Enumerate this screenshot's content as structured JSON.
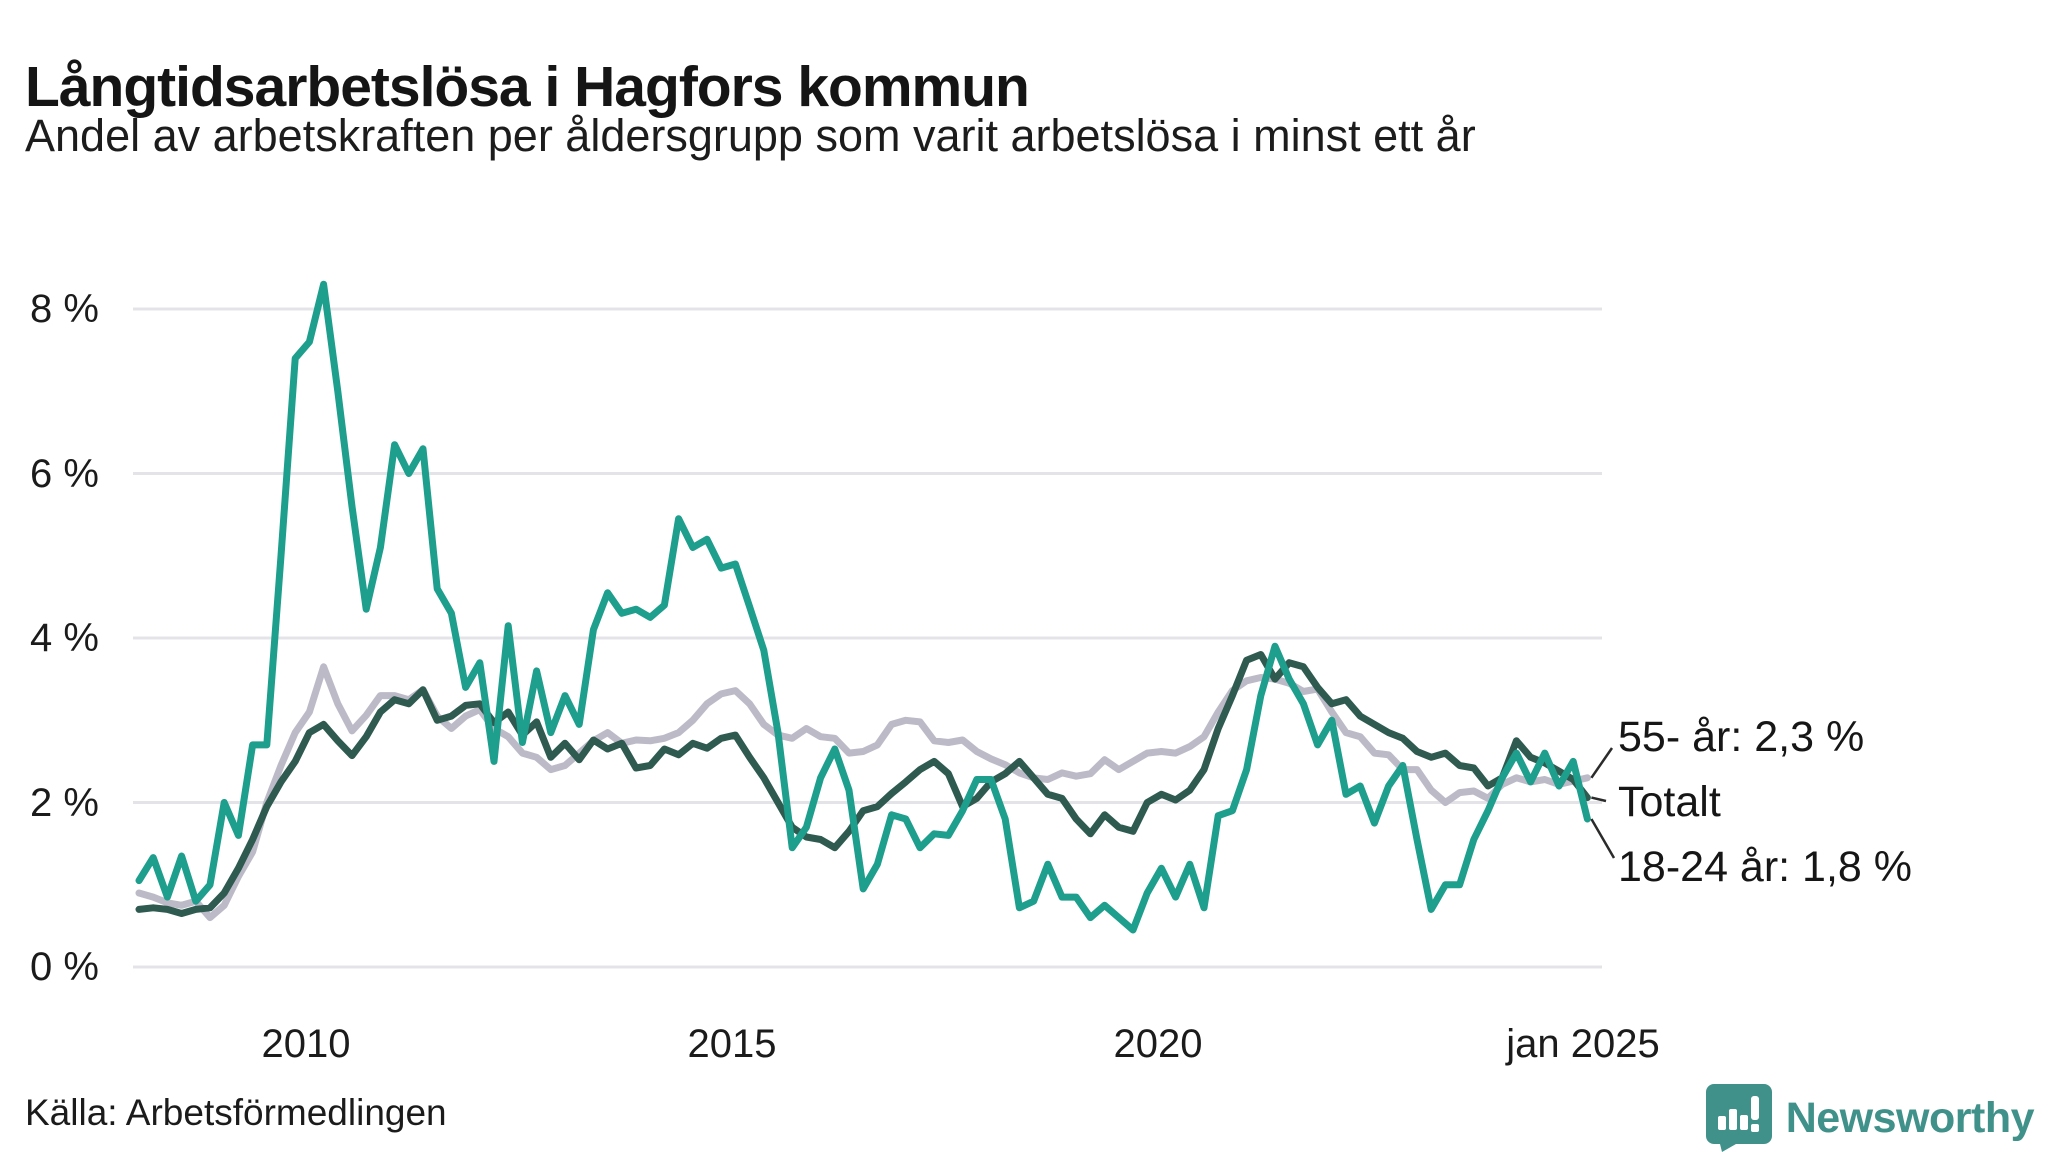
{
  "title": "Långtidsarbetslösa i Hagfors kommun",
  "subtitle": "Andel av arbetskraften per åldersgrupp som varit arbetslösa i minst ett år",
  "source": "Källa: Arbetsförmedlingen",
  "brand": {
    "name": "Newsworthy",
    "color": "#40918a",
    "icon": "bar-chart-speech-bubble-icon"
  },
  "colors": {
    "background": "#ffffff",
    "gridline": "#e4e4e8",
    "text": "#1b1b1b",
    "series_18_24": "#1e9e8c",
    "series_totalt": "#2e5a50",
    "series_55": "#bdbac8",
    "connector": "#2b2b2b"
  },
  "y_axis": {
    "ticks": [
      {
        "label": "8 %",
        "value": 8
      },
      {
        "label": "6 %",
        "value": 6
      },
      {
        "label": "4 %",
        "value": 4
      },
      {
        "label": "2 %",
        "value": 2
      },
      {
        "label": "0 %",
        "value": 0
      }
    ]
  },
  "x_axis": {
    "ticks": [
      {
        "label": "2010",
        "year": 2010
      },
      {
        "label": "2015",
        "year": 2015
      },
      {
        "label": "2020",
        "year": 2020
      },
      {
        "label": "jan 2025",
        "year": 2025
      }
    ]
  },
  "annotations": [
    {
      "text": "55- år: 2,3 %",
      "series": "55- år"
    },
    {
      "text": "Totalt",
      "series": "Totalt"
    },
    {
      "text": "18-24 år: 1,8 %",
      "series": "18-24 år"
    }
  ],
  "chart_data": {
    "type": "line",
    "title": "Långtidsarbetslösa i Hagfors kommun",
    "xlabel": "",
    "ylabel": "Andel av arbetskraften (%)",
    "x_start": 2008.0,
    "x_step_years": 0.166667,
    "x_end": 2025.0,
    "x_unit": "year (varannan månad)",
    "ylim": [
      0,
      8.6
    ],
    "grid": "horizontal",
    "legend_position": "end-of-line-labels",
    "series": [
      {
        "name": "55- år",
        "color": "#bdbac8",
        "end_value_label": "55- år: 2,3 %",
        "end_value": 2.3,
        "values": [
          0.9,
          0.85,
          0.78,
          0.75,
          0.8,
          0.6,
          0.75,
          1.1,
          1.4,
          2.0,
          2.45,
          2.85,
          3.1,
          3.65,
          3.2,
          2.87,
          3.06,
          3.3,
          3.3,
          3.25,
          3.37,
          3.05,
          2.9,
          3.05,
          3.13,
          2.9,
          2.8,
          2.6,
          2.55,
          2.4,
          2.45,
          2.6,
          2.75,
          2.85,
          2.72,
          2.76,
          2.75,
          2.78,
          2.85,
          3.0,
          3.2,
          3.32,
          3.36,
          3.2,
          2.95,
          2.82,
          2.78,
          2.9,
          2.8,
          2.78,
          2.6,
          2.62,
          2.7,
          2.95,
          3.0,
          2.98,
          2.75,
          2.73,
          2.76,
          2.62,
          2.53,
          2.46,
          2.36,
          2.3,
          2.28,
          2.36,
          2.32,
          2.35,
          2.52,
          2.4,
          2.5,
          2.6,
          2.62,
          2.6,
          2.68,
          2.8,
          3.1,
          3.36,
          3.48,
          3.52,
          3.5,
          3.45,
          3.35,
          3.38,
          3.1,
          2.85,
          2.8,
          2.6,
          2.58,
          2.4,
          2.4,
          2.15,
          2.0,
          2.12,
          2.14,
          2.05,
          2.22,
          2.3,
          2.25,
          2.28,
          2.22,
          2.26,
          2.3
        ]
      },
      {
        "name": "Totalt",
        "color": "#2e5a50",
        "end_value_label": "Totalt",
        "end_value": 2.06,
        "values": [
          0.7,
          0.72,
          0.7,
          0.65,
          0.7,
          0.72,
          0.9,
          1.2,
          1.55,
          1.95,
          2.25,
          2.5,
          2.85,
          2.95,
          2.75,
          2.57,
          2.8,
          3.1,
          3.25,
          3.2,
          3.37,
          3.0,
          3.05,
          3.18,
          3.2,
          2.97,
          3.1,
          2.82,
          2.98,
          2.55,
          2.72,
          2.52,
          2.76,
          2.65,
          2.72,
          2.42,
          2.45,
          2.65,
          2.58,
          2.72,
          2.66,
          2.78,
          2.82,
          2.55,
          2.3,
          2.0,
          1.7,
          1.58,
          1.55,
          1.45,
          1.65,
          1.9,
          1.95,
          2.11,
          2.25,
          2.4,
          2.5,
          2.35,
          1.95,
          2.05,
          2.25,
          2.35,
          2.5,
          2.3,
          2.1,
          2.05,
          1.8,
          1.62,
          1.85,
          1.7,
          1.65,
          2.0,
          2.1,
          2.03,
          2.15,
          2.4,
          2.9,
          3.3,
          3.73,
          3.8,
          3.5,
          3.7,
          3.65,
          3.4,
          3.2,
          3.25,
          3.05,
          2.95,
          2.85,
          2.78,
          2.62,
          2.55,
          2.6,
          2.45,
          2.42,
          2.2,
          2.3,
          2.75,
          2.55,
          2.48,
          2.38,
          2.28,
          2.06
        ]
      },
      {
        "name": "18-24 år",
        "color": "#1e9e8c",
        "end_value_label": "18-24 år: 1,8 %",
        "end_value": 1.8,
        "values": [
          1.05,
          1.33,
          0.85,
          1.35,
          0.8,
          1.0,
          2.0,
          1.6,
          2.7,
          2.7,
          5.0,
          7.4,
          7.6,
          8.3,
          7.0,
          5.6,
          4.35,
          5.1,
          6.35,
          6.0,
          6.3,
          4.6,
          4.3,
          3.4,
          3.7,
          2.5,
          4.15,
          2.73,
          3.6,
          2.85,
          3.3,
          2.95,
          4.1,
          4.55,
          4.3,
          4.35,
          4.25,
          4.4,
          5.45,
          5.1,
          5.2,
          4.85,
          4.9,
          4.38,
          3.85,
          2.85,
          1.45,
          1.7,
          2.3,
          2.65,
          2.15,
          0.95,
          1.25,
          1.85,
          1.8,
          1.45,
          1.62,
          1.6,
          1.9,
          2.28,
          2.28,
          1.8,
          0.72,
          0.8,
          1.25,
          0.85,
          0.85,
          0.6,
          0.75,
          0.6,
          0.45,
          0.9,
          1.2,
          0.85,
          1.25,
          0.72,
          1.84,
          1.9,
          2.4,
          3.3,
          3.9,
          3.5,
          3.2,
          2.7,
          3.0,
          2.1,
          2.2,
          1.75,
          2.2,
          2.45,
          1.55,
          0.7,
          1.0,
          1.0,
          1.55,
          1.9,
          2.3,
          2.6,
          2.25,
          2.6,
          2.2,
          2.5,
          1.8
        ]
      }
    ]
  }
}
